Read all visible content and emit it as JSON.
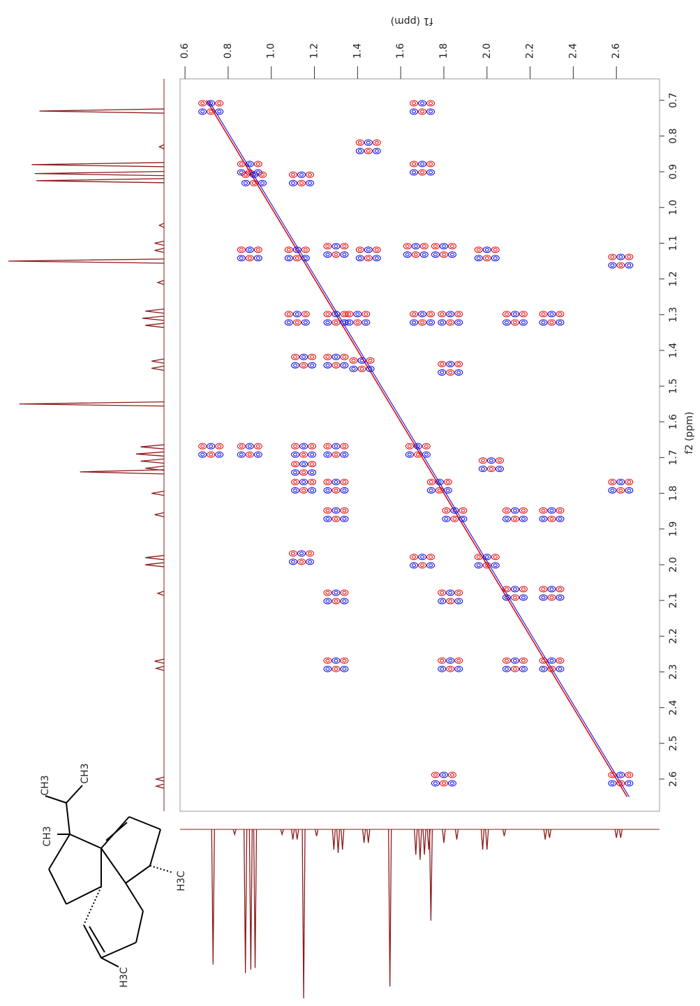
{
  "chart_data": {
    "type": "contour",
    "x_label": "f1 (ppm)",
    "y_label": "f2 (ppm)",
    "xlim": [
      0.577,
      2.8
    ],
    "ylim": [
      0.64,
      2.69
    ],
    "xticks": [
      0.6,
      0.8,
      {
        "value": 1,
        "label": "1.0"
      },
      1.2,
      1.4,
      1.6,
      1.8,
      {
        "value": 2,
        "label": "2.0"
      },
      2.2,
      2.4,
      2.6
    ],
    "yticks": [
      0.7,
      0.8,
      0.9,
      {
        "value": 1,
        "label": "1.0"
      },
      1.1,
      1.2,
      1.3,
      1.4,
      1.5,
      1.6,
      1.7,
      1.8,
      1.9,
      {
        "value": 2,
        "label": "2.0"
      },
      2.1,
      2.2,
      2.3,
      2.4,
      2.5,
      2.6
    ],
    "positive_color": "#e00000",
    "negative_color": "#0000e0",
    "spectrum_color": "#8b1a1a",
    "peaks": {
      "x": [
        0.72,
        1.7,
        0.9,
        0.92,
        1.14,
        1.7,
        1.45,
        0.9,
        1.12,
        1.3,
        1.45,
        1.67,
        1.8,
        2.0,
        2.62,
        1.12,
        1.3,
        1.4,
        1.7,
        1.83,
        2.13,
        2.3,
        1.15,
        1.3,
        1.42,
        1.83,
        0.72,
        0.9,
        1.15,
        1.3,
        1.68,
        2.02,
        1.15,
        1.15,
        1.3,
        1.78,
        2.62,
        1.3,
        1.85,
        2.13,
        2.3,
        1.14,
        1.7,
        2.0,
        1.3,
        1.83,
        2.13,
        2.3,
        1.3,
        1.83,
        2.13,
        2.3,
        1.8,
        2.62
      ],
      "y": [
        0.72,
        0.72,
        0.89,
        0.92,
        0.92,
        0.89,
        0.83,
        1.13,
        1.13,
        1.12,
        1.13,
        1.12,
        1.12,
        1.13,
        1.15,
        1.31,
        1.31,
        1.31,
        1.31,
        1.31,
        1.31,
        1.31,
        1.43,
        1.43,
        1.44,
        1.45,
        1.68,
        1.68,
        1.68,
        1.68,
        1.68,
        1.72,
        1.73,
        1.78,
        1.78,
        1.78,
        1.78,
        1.86,
        1.86,
        1.86,
        1.86,
        1.98,
        1.99,
        1.99,
        2.09,
        2.09,
        2.08,
        2.08,
        2.28,
        2.28,
        2.28,
        2.28,
        2.6,
        2.6
      ]
    },
    "spectrum": {
      "shifts": [
        0.73,
        0.83,
        0.88,
        0.905,
        0.925,
        1.05,
        1.1,
        1.12,
        1.15,
        1.21,
        1.29,
        1.31,
        1.33,
        1.43,
        1.45,
        1.55,
        1.67,
        1.69,
        1.71,
        1.73,
        1.74,
        1.8,
        1.86,
        1.98,
        2.0,
        2.08,
        2.27,
        2.29,
        2.6,
        2.62
      ],
      "heights": [
        80,
        3,
        85,
        83,
        82,
        3,
        6,
        6,
        100,
        4,
        12,
        14,
        12,
        8,
        8,
        93,
        15,
        18,
        15,
        12,
        54,
        8,
        6,
        12,
        12,
        4,
        6,
        5,
        5,
        5
      ]
    },
    "structure_labels": [
      "CH3",
      "CH3",
      "CH3",
      "H3C",
      "H3C"
    ]
  }
}
